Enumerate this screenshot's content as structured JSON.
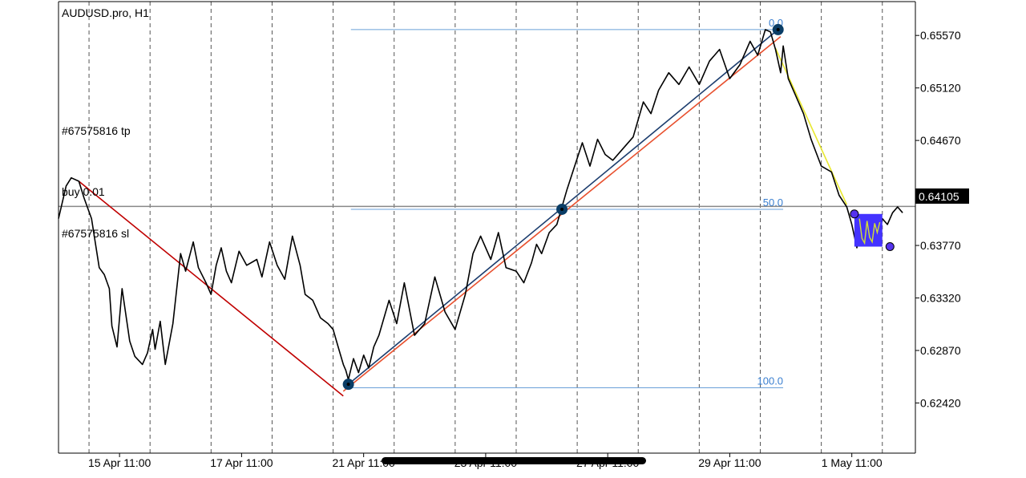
{
  "chart_data": {
    "type": "line",
    "title": "AUDUSD.pro, H1",
    "symbol": "AUDUSD.pro",
    "timeframe": "H1",
    "x_axis": {
      "tick_labels": [
        "15 Apr 11:00",
        "17 Apr 11:00",
        "21 Apr 11:00",
        "23 Apr 11:00",
        "27 Apr 11:00",
        "29 Apr 11:00",
        "1 May 11:00"
      ],
      "tick_hours": [
        24,
        72,
        120,
        168,
        216,
        264,
        312
      ],
      "range_hours": [
        0,
        337
      ]
    },
    "y_axis": {
      "side": "right",
      "tick_labels": [
        "0.65570",
        "0.65120",
        "0.64670",
        "0.64220",
        "0.63770",
        "0.63320",
        "0.62870",
        "0.62420"
      ],
      "range": [
        0.6199,
        0.6586
      ]
    },
    "grid": {
      "vertical_dashed": true,
      "horizontal": false
    },
    "current_price": {
      "value": 0.64105,
      "label": "0.64105"
    },
    "annotations": {
      "tp_label": "#67575816 tp",
      "buy_label": "buy 0.01",
      "sl_label": "#67575816 sl"
    },
    "fibonacci": {
      "levels": [
        {
          "label": "0.0",
          "value": 0.6562
        },
        {
          "label": "50.0",
          "value": 0.6408
        },
        {
          "label": "100.0",
          "value": 0.6255
        }
      ],
      "x_start_hours": 115,
      "x_end_hours": 285
    },
    "series": [
      {
        "color": "#000000",
        "x_hours": [
          0,
          3,
          5,
          8,
          10,
          13,
          16,
          18,
          20,
          21,
          23,
          25,
          28,
          30,
          33,
          35,
          37,
          38,
          40,
          42,
          45,
          48,
          50,
          53,
          55,
          58,
          60,
          62,
          64,
          66,
          68,
          71,
          74,
          78,
          80,
          83,
          86,
          89,
          92,
          95,
          97,
          100,
          103,
          106,
          108,
          110,
          112,
          113,
          114,
          116,
          118,
          120,
          122,
          124,
          126,
          130,
          133,
          136,
          140,
          144,
          148,
          152,
          156,
          160,
          163,
          166,
          170,
          173,
          176,
          180,
          183,
          186,
          188,
          190,
          193,
          196,
          200,
          203,
          206,
          209,
          212,
          215,
          218,
          222,
          226,
          230,
          233,
          236,
          240,
          244,
          248,
          252,
          256,
          260,
          264,
          268,
          272,
          275,
          278,
          280,
          282,
          284,
          285,
          287,
          290,
          293,
          296,
          300,
          304,
          307,
          310,
          312,
          314,
          316,
          318,
          320,
          322,
          324,
          326,
          328,
          330,
          332
        ],
        "values": [
          0.64,
          0.6428,
          0.6435,
          0.6432,
          0.6418,
          0.64,
          0.6358,
          0.6352,
          0.634,
          0.6308,
          0.629,
          0.634,
          0.6295,
          0.6282,
          0.6275,
          0.6285,
          0.6305,
          0.6288,
          0.6312,
          0.6275,
          0.631,
          0.637,
          0.6355,
          0.638,
          0.6358,
          0.6345,
          0.6335,
          0.636,
          0.6375,
          0.6355,
          0.6345,
          0.6372,
          0.636,
          0.6365,
          0.635,
          0.638,
          0.636,
          0.6348,
          0.6385,
          0.636,
          0.6335,
          0.633,
          0.6315,
          0.631,
          0.6305,
          0.629,
          0.6275,
          0.627,
          0.6262,
          0.628,
          0.6268,
          0.6283,
          0.6272,
          0.629,
          0.63,
          0.633,
          0.631,
          0.6345,
          0.63,
          0.631,
          0.635,
          0.632,
          0.6305,
          0.6335,
          0.637,
          0.6385,
          0.6365,
          0.6388,
          0.6358,
          0.6355,
          0.6345,
          0.6362,
          0.6378,
          0.637,
          0.6388,
          0.6395,
          0.6425,
          0.6445,
          0.6465,
          0.6445,
          0.6468,
          0.6455,
          0.645,
          0.646,
          0.647,
          0.65,
          0.649,
          0.651,
          0.6525,
          0.6515,
          0.653,
          0.6515,
          0.6535,
          0.6545,
          0.652,
          0.6532,
          0.6552,
          0.654,
          0.6562,
          0.656,
          0.6545,
          0.6525,
          0.6548,
          0.652,
          0.6505,
          0.649,
          0.6468,
          0.6445,
          0.644,
          0.642,
          0.641,
          0.6395,
          0.6375,
          0.6395,
          0.638,
          0.6402,
          0.6378,
          0.64,
          0.6395,
          0.6405,
          0.641,
          0.6405
        ]
      }
    ],
    "trendlines": [
      {
        "color": "#c00000",
        "from": [
          8,
          0.6432
        ],
        "to": [
          112,
          0.6248
        ]
      },
      {
        "color": "#1c3d6e",
        "from": [
          114,
          0.6258
        ],
        "to": [
          283,
          0.6562
        ]
      },
      {
        "color": "#e8502e",
        "from": [
          112,
          0.6252
        ],
        "to": [
          284,
          0.6556
        ]
      },
      {
        "color": "#e8e830",
        "from": [
          282,
          0.6546
        ],
        "to": [
          310,
          0.6412
        ]
      }
    ],
    "markers": [
      {
        "color": "#0a3d66",
        "x": 114,
        "y": 0.6258,
        "kind": "big"
      },
      {
        "color": "#0a3d66",
        "x": 198,
        "y": 0.6408,
        "kind": "big"
      },
      {
        "color": "#0a3d66",
        "x": 283,
        "y": 0.6562,
        "kind": "big"
      },
      {
        "color": "#5533ee",
        "x": 313,
        "y": 0.6404,
        "kind": "small"
      },
      {
        "color": "#5533ee",
        "x": 327,
        "y": 0.6376,
        "kind": "small"
      }
    ],
    "zone": {
      "color": "#4433ff",
      "x_from": 313,
      "x_to": 324,
      "y_from": 0.6376,
      "y_to": 0.6404,
      "overlay_color": "#d4e030",
      "overlay_x_hours": [
        315,
        316,
        317,
        318,
        319,
        320,
        321,
        322,
        323
      ],
      "overlay_values": [
        0.64,
        0.6383,
        0.6379,
        0.6398,
        0.6384,
        0.638,
        0.6396,
        0.6388,
        0.6397
      ]
    },
    "colors": {
      "axis": "#000000",
      "grid": "#555555",
      "fib": "#6aa0d8",
      "fib_label": "#3a7fd0",
      "current_line": "#888888"
    }
  },
  "ui": {
    "scrollbar": {
      "color": "#000000"
    }
  }
}
